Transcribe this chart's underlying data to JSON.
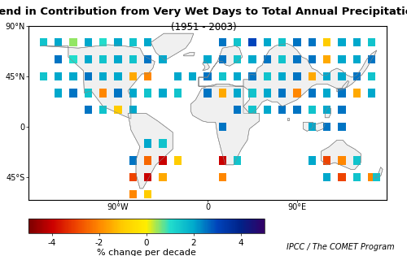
{
  "title": "Trend in Contribution from Very Wet Days to Total Annual Precipitation",
  "subtitle": "(1951 - 2003)",
  "colorbar_label": "% change per decade",
  "credit": "IPCC / The COMET Program",
  "vmin": -5,
  "vmax": 5,
  "title_fontsize": 9.5,
  "subtitle_fontsize": 8.5,
  "axis_tick_fontsize": 7,
  "colorbar_tick_fontsize": 7.5,
  "colorbar_label_fontsize": 8,
  "credit_fontsize": 7,
  "xticks": [
    -90,
    0,
    90
  ],
  "xtick_labels": [
    "90°W",
    "0",
    "90°E"
  ],
  "yticks": [
    -45,
    0,
    45,
    90
  ],
  "ytick_labels": [
    "45°S",
    "0",
    "45°N",
    "90°N"
  ],
  "xlim": [
    -180,
    180
  ],
  "ylim": [
    -65,
    90
  ],
  "colors_list": [
    "#7B0000",
    "#CC0000",
    "#EE4400",
    "#FF8800",
    "#FFCC00",
    "#FFEE00",
    "#22DDCC",
    "#00AACC",
    "#0044BB",
    "#002288",
    "#330066"
  ],
  "grid_points": [
    [
      -165,
      75,
      1.5
    ],
    [
      -150,
      75,
      2.0
    ],
    [
      -135,
      75,
      0.5
    ],
    [
      -120,
      75,
      2.0
    ],
    [
      -105,
      75,
      1.0
    ],
    [
      -90,
      75,
      2.0
    ],
    [
      -75,
      75,
      1.5
    ],
    [
      -60,
      75,
      2.0
    ],
    [
      15,
      75,
      2.5
    ],
    [
      30,
      75,
      1.5
    ],
    [
      45,
      75,
      3.0
    ],
    [
      60,
      75,
      2.0
    ],
    [
      75,
      75,
      1.5
    ],
    [
      90,
      75,
      2.5
    ],
    [
      105,
      75,
      2.5
    ],
    [
      120,
      75,
      -1.0
    ],
    [
      135,
      75,
      2.0
    ],
    [
      150,
      75,
      2.0
    ],
    [
      165,
      75,
      1.5
    ],
    [
      -150,
      60,
      2.5
    ],
    [
      -135,
      60,
      1.0
    ],
    [
      -120,
      60,
      2.0
    ],
    [
      -105,
      60,
      1.5
    ],
    [
      -90,
      60,
      2.0
    ],
    [
      -75,
      60,
      1.5
    ],
    [
      -60,
      60,
      2.5
    ],
    [
      -45,
      60,
      2.0
    ],
    [
      0,
      60,
      2.0
    ],
    [
      15,
      60,
      2.5
    ],
    [
      30,
      60,
      1.5
    ],
    [
      45,
      60,
      2.0
    ],
    [
      60,
      60,
      2.5
    ],
    [
      75,
      60,
      1.5
    ],
    [
      90,
      60,
      2.5
    ],
    [
      105,
      60,
      2.5
    ],
    [
      120,
      60,
      -1.5
    ],
    [
      135,
      60,
      2.0
    ],
    [
      150,
      60,
      2.0
    ],
    [
      165,
      60,
      2.5
    ],
    [
      -165,
      45,
      1.5
    ],
    [
      -150,
      45,
      2.0
    ],
    [
      -135,
      45,
      2.0
    ],
    [
      -120,
      45,
      2.5
    ],
    [
      -105,
      45,
      2.0
    ],
    [
      -90,
      45,
      2.0
    ],
    [
      -75,
      45,
      -1.5
    ],
    [
      -60,
      45,
      -2.0
    ],
    [
      -30,
      45,
      2.0
    ],
    [
      -15,
      45,
      2.0
    ],
    [
      0,
      45,
      2.5
    ],
    [
      15,
      45,
      1.5
    ],
    [
      30,
      45,
      2.0
    ],
    [
      45,
      45,
      2.5
    ],
    [
      60,
      45,
      1.5
    ],
    [
      75,
      45,
      2.0
    ],
    [
      90,
      45,
      2.5
    ],
    [
      105,
      45,
      -1.5
    ],
    [
      120,
      45,
      2.0
    ],
    [
      135,
      45,
      2.0
    ],
    [
      150,
      45,
      2.5
    ],
    [
      165,
      45,
      1.5
    ],
    [
      -150,
      30,
      2.0
    ],
    [
      -135,
      30,
      2.5
    ],
    [
      -120,
      30,
      1.5
    ],
    [
      -105,
      30,
      -2.0
    ],
    [
      -90,
      30,
      2.5
    ],
    [
      -75,
      30,
      2.0
    ],
    [
      -60,
      30,
      1.5
    ],
    [
      -45,
      30,
      2.0
    ],
    [
      -30,
      30,
      1.5
    ],
    [
      0,
      30,
      2.5
    ],
    [
      15,
      30,
      -1.5
    ],
    [
      30,
      30,
      2.0
    ],
    [
      45,
      30,
      1.5
    ],
    [
      60,
      30,
      2.0
    ],
    [
      75,
      30,
      2.5
    ],
    [
      90,
      30,
      -2.0
    ],
    [
      105,
      30,
      2.5
    ],
    [
      120,
      30,
      2.0
    ],
    [
      135,
      30,
      2.5
    ],
    [
      150,
      30,
      -1.5
    ],
    [
      165,
      30,
      2.0
    ],
    [
      -120,
      15,
      2.5
    ],
    [
      -105,
      15,
      1.5
    ],
    [
      -90,
      15,
      -1.0
    ],
    [
      -75,
      15,
      2.0
    ],
    [
      30,
      15,
      2.5
    ],
    [
      45,
      15,
      1.5
    ],
    [
      60,
      15,
      2.0
    ],
    [
      75,
      15,
      2.5
    ],
    [
      90,
      15,
      2.5
    ],
    [
      105,
      15,
      1.5
    ],
    [
      120,
      15,
      2.0
    ],
    [
      135,
      15,
      2.5
    ],
    [
      15,
      0,
      2.5
    ],
    [
      105,
      0,
      2.0
    ],
    [
      120,
      0,
      2.5
    ],
    [
      135,
      0,
      2.5
    ],
    [
      -60,
      -15,
      2.0
    ],
    [
      -45,
      -15,
      1.5
    ],
    [
      -75,
      -30,
      2.5
    ],
    [
      -60,
      -30,
      -2.5
    ],
    [
      -45,
      -30,
      -4.0
    ],
    [
      -30,
      -30,
      -1.0
    ],
    [
      15,
      -30,
      -4.0
    ],
    [
      30,
      -30,
      1.5
    ],
    [
      105,
      -30,
      2.0
    ],
    [
      120,
      -30,
      -3.0
    ],
    [
      135,
      -30,
      -2.0
    ],
    [
      150,
      -30,
      1.5
    ],
    [
      -75,
      -45,
      -3.0
    ],
    [
      -60,
      -45,
      -4.0
    ],
    [
      -45,
      -45,
      -1.5
    ],
    [
      15,
      -45,
      -2.0
    ],
    [
      120,
      -45,
      2.0
    ],
    [
      135,
      -45,
      -3.0
    ],
    [
      150,
      -45,
      1.5
    ],
    [
      165,
      -45,
      -2.0
    ],
    [
      -75,
      -60,
      -2.0
    ],
    [
      -60,
      -60,
      -1.0
    ],
    [
      170,
      -45,
      1.5
    ]
  ],
  "cell_size_deg": 7.5
}
